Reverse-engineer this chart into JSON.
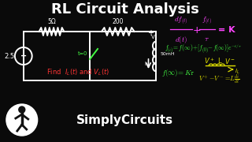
{
  "title": "RL Circuit Analysis",
  "title_color": "#ffffff",
  "bg_color": "#0a0a0a",
  "eq1_color": "#ff44ff",
  "eq2_color": "#44ff44",
  "eq3_color": "#ff3333",
  "eq4_color": "#dddd00",
  "circuit_color": "#ffffff",
  "logo_text": "SimplyCircuits",
  "logo_color": "#ffffff",
  "r1_label": "5Ω",
  "r2_label": "200",
  "ind_label": "50mH",
  "src_label": "2.5"
}
